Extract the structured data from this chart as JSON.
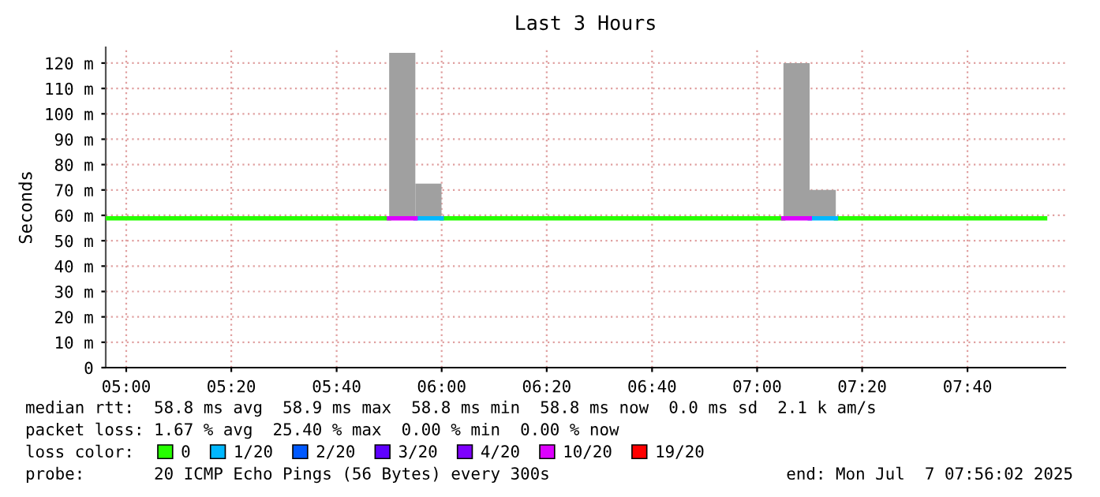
{
  "chart_data": {
    "type": "step",
    "title": "Last 3 Hours",
    "ylabel": "Seconds",
    "legend_title": "loss color:",
    "legend": "bottom",
    "grid": true,
    "x": [
      4.935,
      5.833,
      5.9,
      6.0,
      7.083,
      7.15,
      7.25,
      7.913
    ],
    "xlim": [
      4.935,
      7.977
    ],
    "ylim": [
      0,
      126.2
    ],
    "xticks": [
      {
        "value": 5.0,
        "label": "05:00"
      },
      {
        "value": 5.333,
        "label": "05:20"
      },
      {
        "value": 5.667,
        "label": "05:40"
      },
      {
        "value": 6.0,
        "label": "06:00"
      },
      {
        "value": 6.333,
        "label": "06:20"
      },
      {
        "value": 6.667,
        "label": "06:40"
      },
      {
        "value": 7.0,
        "label": "07:00"
      },
      {
        "value": 7.333,
        "label": "07:20"
      },
      {
        "value": 7.667,
        "label": "07:40"
      }
    ],
    "yticks": [
      0,
      {
        "value": 10,
        "label": "10 m"
      },
      {
        "value": 20,
        "label": "20 m"
      },
      {
        "value": 30,
        "label": "30 m"
      },
      {
        "value": 40,
        "label": "40 m"
      },
      {
        "value": 50,
        "label": "50 m"
      },
      {
        "value": 60,
        "label": "60 m"
      },
      {
        "value": 70,
        "label": "70 m"
      },
      {
        "value": 80,
        "label": "80 m"
      },
      {
        "value": 90,
        "label": "90 m"
      },
      {
        "value": 100,
        "label": "100 m"
      },
      {
        "value": 110,
        "label": "110 m"
      },
      {
        "value": 120,
        "label": "120 m"
      }
    ],
    "series": [
      {
        "type": "bar",
        "color": "#a0a0a0",
        "x": [
          5.875,
          5.958,
          7.125,
          7.208
        ],
        "base": [
          58.8,
          58.8,
          58.8,
          58.8
        ],
        "values": [
          65.2,
          13.7,
          61.2,
          11.2
        ]
      },
      {
        "name": "0",
        "color": "#26ff00",
        "values": [
          58.8,
          58.8,
          null,
          58.8,
          58.8,
          null,
          58.8,
          58.8
        ]
      },
      {
        "name": "1/20",
        "color": "#00b8ff",
        "x": [
          5.917,
          6.0,
          6.6,
          7.167,
          7.25
        ],
        "values": [
          58.8,
          58.8,
          null,
          58.8,
          58.8
        ]
      },
      {
        "name": "2/20",
        "color": "#0059ff",
        "values": [
          null,
          null,
          null,
          null,
          null,
          null,
          null,
          null
        ]
      },
      {
        "name": "3/20",
        "color": "#5e00ff",
        "values": [
          null,
          null,
          null,
          null,
          null,
          null,
          null,
          null
        ]
      },
      {
        "name": "4/20",
        "color": "#7e00ff",
        "values": [
          null,
          null,
          null,
          null,
          null,
          null,
          null,
          null
        ]
      },
      {
        "name": "10/20",
        "color": "#dd00ff",
        "x": [
          5.833,
          5.917,
          6.5,
          7.083,
          7.167
        ],
        "values": [
          58.8,
          58.8,
          null,
          58.8,
          58.8
        ]
      },
      {
        "name": "19/20",
        "color": "#ff0000",
        "values": [
          null,
          null,
          null,
          null,
          null,
          null,
          null,
          null
        ]
      }
    ],
    "annotations": [
      "median rtt:  58.8 ms avg  58.9 ms max  58.8 ms min  58.8 ms now  0.0 ms sd  2.1 k am/s",
      "packet loss: 1.67 % avg  25.40 % max  0.00 % min  0.00 % now",
      "probe:       20 ICMP Echo Pings (56 Bytes) every 300s",
      "end: Mon Jul  7 07:56:02 2025"
    ]
  }
}
